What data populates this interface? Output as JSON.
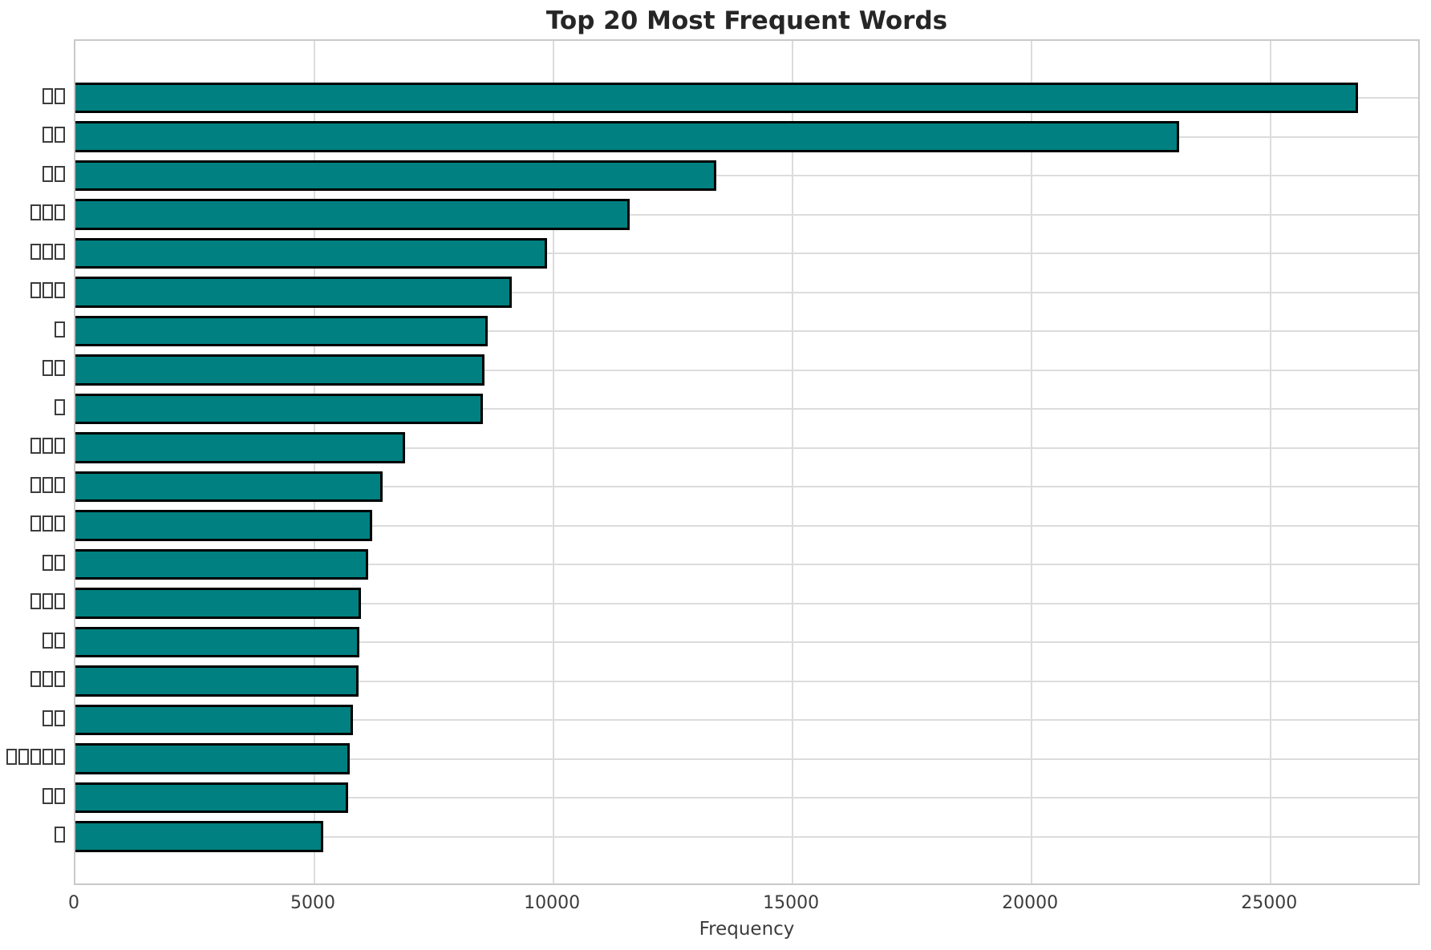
{
  "chart_data": {
    "type": "bar",
    "orientation": "horizontal",
    "title": "Top 20 Most Frequent Words",
    "xlabel": "Frequency",
    "ylabel": "",
    "categories": [
      "□□",
      "□□",
      "□□",
      "□□□",
      "□□□",
      "□□□",
      "□",
      "□□",
      "□",
      "□□□",
      "□□□",
      "□□□",
      "□□",
      "□□□",
      "□□",
      "□□□",
      "□□",
      "□□□□□",
      "□□",
      "□"
    ],
    "values": [
      26830,
      23090,
      13400,
      11590,
      9870,
      9130,
      8620,
      8560,
      8520,
      6900,
      6430,
      6210,
      6120,
      5970,
      5940,
      5930,
      5810,
      5740,
      5700,
      5180
    ],
    "x_ticks": [
      0,
      5000,
      10000,
      15000,
      20000,
      25000
    ],
    "xlim": [
      0,
      28150
    ],
    "grid": true,
    "legend": false,
    "bar_color": "#008080",
    "bar_edge_color": "#000000",
    "grid_color": "#dcdcdc"
  }
}
